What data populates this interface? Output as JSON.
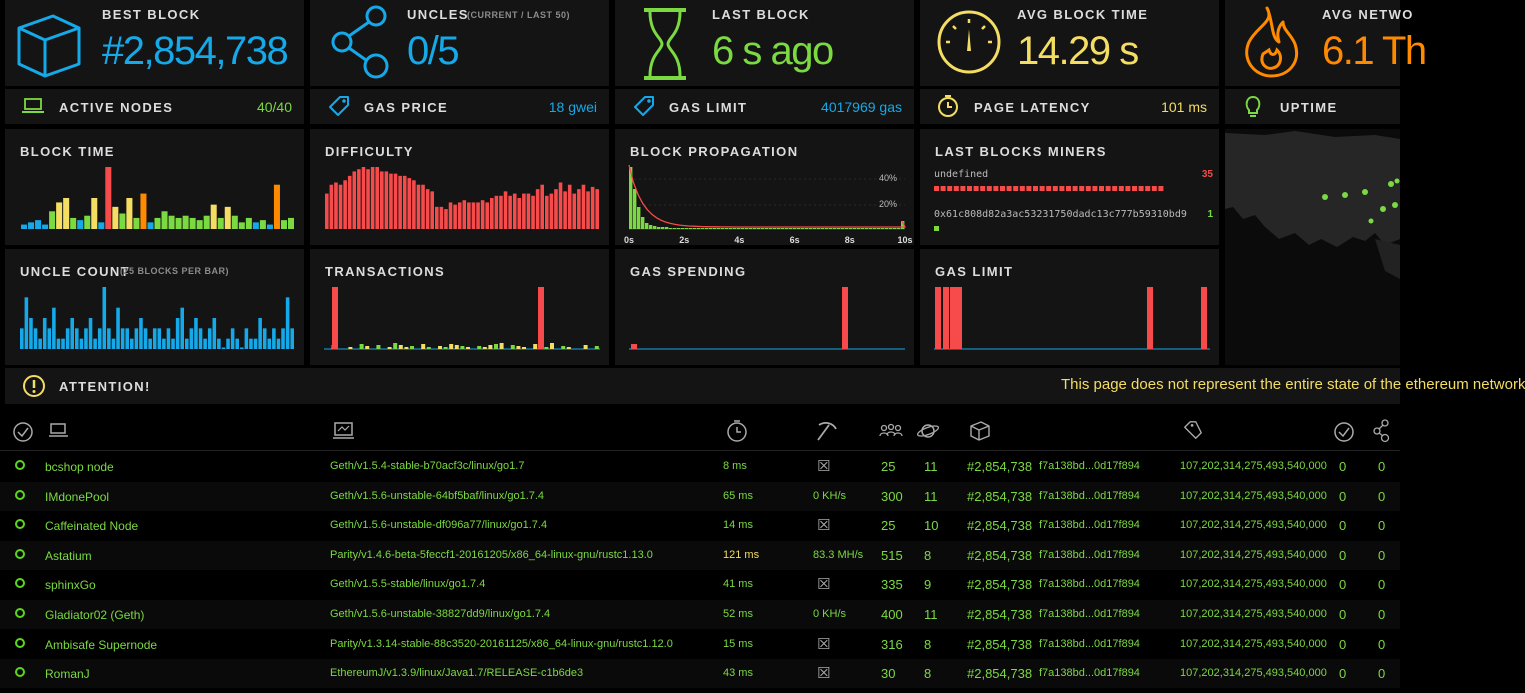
{
  "colors": {
    "bg": "#000000",
    "panel": "#141414",
    "green": "#7bd942",
    "yellow": "#f4dd63",
    "blue": "#15a9e9",
    "orange": "#ff8a00",
    "red": "#f74b4b"
  },
  "top_stats": [
    {
      "label": "BEST BLOCK",
      "value": "#2,854,738",
      "icon": "cube-icon",
      "color": "#15a9e9"
    },
    {
      "label": "UNCLES",
      "sublabel": "(CURRENT / LAST 50)",
      "value": "0/5",
      "icon": "uncles-icon",
      "color": "#15a9e9"
    },
    {
      "label": "LAST BLOCK",
      "value": "6 s ago",
      "icon": "hourglass-icon",
      "color": "#7bd942"
    },
    {
      "label": "AVG BLOCK TIME",
      "value": "14.29 s",
      "icon": "gauge-icon",
      "color": "#f4dd63"
    },
    {
      "label": "AVG NETWO",
      "value": "6.1 Th",
      "icon": "fire-icon",
      "color": "#ff8a00"
    }
  ],
  "small_stats": [
    {
      "label": "ACTIVE NODES",
      "value": "40/40",
      "icon": "laptop-icon",
      "color": "#7bd942"
    },
    {
      "label": "GAS PRICE",
      "value": "18 gwei",
      "icon": "tag-icon",
      "color": "#15a9e9"
    },
    {
      "label": "GAS LIMIT",
      "value": "4017969 gas",
      "icon": "tag-icon",
      "color": "#15a9e9"
    },
    {
      "label": "PAGE LATENCY",
      "value": "101 ms",
      "icon": "timer-icon",
      "color": "#f4dd63"
    },
    {
      "label": "UPTIME",
      "value": "",
      "icon": "lightbulb-icon",
      "color": "#7bd942"
    }
  ],
  "chart_data": [
    {
      "type": "bar",
      "title": "BLOCK TIME",
      "values": [
        2,
        3,
        4,
        2,
        8,
        12,
        14,
        5,
        4,
        6,
        14,
        3,
        28,
        10,
        7,
        14,
        5,
        16,
        3,
        5,
        8,
        6,
        5,
        6,
        5,
        4,
        6,
        11,
        5,
        10,
        6,
        3,
        5,
        3,
        4,
        2,
        20,
        4,
        5
      ],
      "colors": [
        "#15a9e9",
        "#15a9e9",
        "#15a9e9",
        "#15a9e9",
        "#7bd942",
        "#f4dd63",
        "#f4dd63",
        "#7bd942",
        "#15a9e9",
        "#7bd942",
        "#f4dd63",
        "#15a9e9",
        "#f74b4b",
        "#f4dd63",
        "#7bd942",
        "#f4dd63",
        "#7bd942",
        "#ff8a00",
        "#15a9e9",
        "#7bd942",
        "#7bd942",
        "#7bd942",
        "#7bd942",
        "#7bd942",
        "#7bd942",
        "#7bd942",
        "#7bd942",
        "#f4dd63",
        "#7bd942",
        "#f4dd63",
        "#7bd942",
        "#7bd942",
        "#7bd942",
        "#15a9e9",
        "#7bd942",
        "#15a9e9",
        "#ff8a00",
        "#7bd942",
        "#7bd942"
      ]
    },
    {
      "type": "bar",
      "title": "DIFFICULTY",
      "values": [
        16,
        20,
        21,
        20,
        22,
        24,
        26,
        27,
        28,
        27,
        28,
        28,
        26,
        26,
        25,
        25,
        24,
        24,
        23,
        22,
        20,
        20,
        18,
        17,
        10,
        10,
        9,
        12,
        11,
        12,
        13,
        12,
        12,
        12,
        13,
        12,
        14,
        15,
        15,
        17,
        15,
        16,
        14,
        16,
        16,
        15,
        18,
        20,
        15,
        16,
        18,
        21,
        17,
        20,
        16,
        18,
        20,
        17,
        19,
        18
      ],
      "color": "#f74b4b"
    },
    {
      "type": "line",
      "title": "BLOCK PROPAGATION",
      "x_ticks": [
        "0s",
        "2s",
        "4s",
        "6s",
        "8s",
        "10s"
      ],
      "y_ticks": [
        "40%",
        "20%"
      ]
    },
    {
      "type": "table",
      "title": "LAST BLOCKS MINERS",
      "miners": [
        {
          "name": "undefined",
          "count": "35"
        },
        {
          "name": "0x61c808d82a3ac53231750dadc13c777b59310bd9",
          "count": "1"
        }
      ]
    },
    {
      "type": "bar",
      "title": "UNCLE COUNT",
      "sublabel": "(25 BLOCKS PER BAR)",
      "values": [
        2,
        5,
        3,
        2,
        1,
        3,
        2,
        4,
        1,
        1,
        2,
        3,
        2,
        1,
        2,
        3,
        1,
        2,
        6,
        2,
        1,
        4,
        2,
        2,
        1,
        2,
        3,
        2,
        1,
        2,
        2,
        1,
        2,
        1,
        3,
        4,
        1,
        2,
        3,
        2,
        1,
        2,
        3,
        1,
        0,
        1,
        2,
        1,
        0,
        2,
        1,
        1,
        3,
        2,
        1,
        2,
        1,
        2,
        5,
        2
      ],
      "color": "#15a9e9"
    },
    {
      "type": "bar",
      "title": "TRANSACTIONS"
    },
    {
      "type": "bar",
      "title": "GAS SPENDING"
    },
    {
      "type": "bar",
      "title": "GAS LIMIT"
    }
  ],
  "attention": {
    "label": "ATTENTION!",
    "message": "This page does not represent the entire state of the ethereum network"
  },
  "table_header_icons": [
    "check-circle-icon",
    "laptop-icon",
    "terminal-icon",
    "timer-icon",
    "pickaxe-icon",
    "peers-icon",
    "planet-icon",
    "cube-icon",
    "tag-icon",
    "check-circle-icon",
    "uncles-icon"
  ],
  "nodes": [
    {
      "name": "bcshop node",
      "client": "Geth/v1.5.4-stable-b70acf3c/linux/go1.7",
      "latency": "8 ms",
      "hashrate": "",
      "mining": false,
      "peers": "25",
      "pending": "11",
      "block": "#2,854,738",
      "hash": "f7a138bd...0d17f894",
      "difficulty": "107,202,314,275,493,540,000",
      "tx": "0",
      "uncles": "0"
    },
    {
      "name": "IMdonePool",
      "client": "Geth/v1.5.6-unstable-64bf5baf/linux/go1.7.4",
      "latency": "65 ms",
      "hashrate": "0 KH/s",
      "mining": true,
      "peers": "300",
      "pending": "11",
      "block": "#2,854,738",
      "hash": "f7a138bd...0d17f894",
      "difficulty": "107,202,314,275,493,540,000",
      "tx": "0",
      "uncles": "0"
    },
    {
      "name": "Caffeinated Node",
      "client": "Geth/v1.5.6-unstable-df096a77/linux/go1.7.4",
      "latency": "14 ms",
      "hashrate": "",
      "mining": false,
      "peers": "25",
      "pending": "10",
      "block": "#2,854,738",
      "hash": "f7a138bd...0d17f894",
      "difficulty": "107,202,314,275,493,540,000",
      "tx": "0",
      "uncles": "0"
    },
    {
      "name": "Astatium",
      "client": "Parity/v1.4.6-beta-5feccf1-20161205/x86_64-linux-gnu/rustc1.13.0",
      "latency": "121 ms",
      "hashrate": "83.3 MH/s",
      "mining": true,
      "peers": "515",
      "pending": "8",
      "block": "#2,854,738",
      "hash": "f7a138bd...0d17f894",
      "difficulty": "107,202,314,275,493,540,000",
      "tx": "0",
      "uncles": "0"
    },
    {
      "name": "sphinxGo",
      "client": "Geth/v1.5.5-stable/linux/go1.7.4",
      "latency": "41 ms",
      "hashrate": "",
      "mining": false,
      "peers": "335",
      "pending": "9",
      "block": "#2,854,738",
      "hash": "f7a138bd...0d17f894",
      "difficulty": "107,202,314,275,493,540,000",
      "tx": "0",
      "uncles": "0"
    },
    {
      "name": "Gladiator02 (Geth)",
      "client": "Geth/v1.5.6-unstable-38827dd9/linux/go1.7.4",
      "latency": "52 ms",
      "hashrate": "0 KH/s",
      "mining": true,
      "peers": "400",
      "pending": "11",
      "block": "#2,854,738",
      "hash": "f7a138bd...0d17f894",
      "difficulty": "107,202,314,275,493,540,000",
      "tx": "0",
      "uncles": "0"
    },
    {
      "name": "Ambisafe Supernode",
      "client": "Parity/v1.3.14-stable-88c3520-20161125/x86_64-linux-gnu/rustc1.12.0",
      "latency": "15 ms",
      "hashrate": "",
      "mining": false,
      "peers": "316",
      "pending": "8",
      "block": "#2,854,738",
      "hash": "f7a138bd...0d17f894",
      "difficulty": "107,202,314,275,493,540,000",
      "tx": "0",
      "uncles": "0"
    },
    {
      "name": "RomanJ",
      "client": "EthereumJ/v1.3.9/linux/Java1.7/RELEASE-c1b6de3",
      "latency": "43 ms",
      "hashrate": "",
      "mining": false,
      "peers": "30",
      "pending": "8",
      "block": "#2,854,738",
      "hash": "f7a138bd...0d17f894",
      "difficulty": "107,202,314,275,493,540,000",
      "tx": "0",
      "uncles": "0"
    }
  ]
}
